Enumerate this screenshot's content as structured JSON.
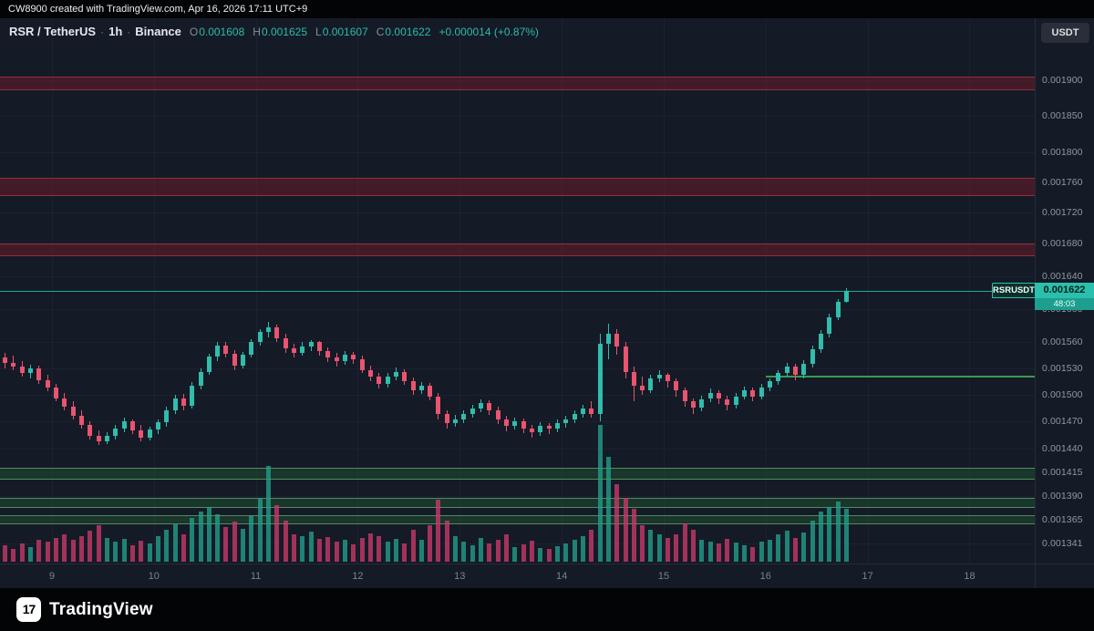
{
  "attribution": {
    "text": "CW8900 created with TradingView.com, Apr 16, 2026 17:11 UTC+9"
  },
  "header": {
    "symbol": "RSR / TetherUS",
    "separator": "·",
    "interval": "1h",
    "exchange": "Binance",
    "ohlc": [
      {
        "label": "O",
        "value": "0.001608"
      },
      {
        "label": "H",
        "value": "0.001625"
      },
      {
        "label": "L",
        "value": "0.001607"
      },
      {
        "label": "C",
        "value": "0.001622"
      }
    ],
    "change": "+0.000014 (+0.87%)"
  },
  "axis": {
    "currency_button": "USDT"
  },
  "price_label": {
    "symbol": "RSRUSDT",
    "price": "0.001622",
    "countdown": "48:03"
  },
  "footer": {
    "logo_text": "TradingView",
    "logo_glyph": "17"
  },
  "colors": {
    "background": "#141a26",
    "up": "#31bcab",
    "down": "#e9546f",
    "accent": "#2bbfae",
    "resistance_zone": "#8a1f2d",
    "support_zone": "#2a6e3c"
  },
  "chart_data": {
    "type": "candlestick",
    "symbol": "RSRUSDT",
    "exchange": "Binance",
    "interval": "1h",
    "quote_currency": "USDT",
    "scale_type": "log",
    "current_price": 0.001622,
    "current_candle": {
      "open": 0.001608,
      "high": 0.001625,
      "low": 0.001607,
      "close": 0.001622,
      "change": "+0.000014",
      "change_pct": "+0.87%"
    },
    "price_scale": 1e-06,
    "candles_unit": "[open,high,low,close] in units of 0.000001 USDT, 2h aggregates, Apr 8 12:00 - Apr 16 17:00",
    "axis_price_ticks": [
      0.0019,
      0.00185,
      0.0018,
      0.00176,
      0.00172,
      0.00168,
      0.00164,
      0.0016,
      0.00156,
      0.00153,
      0.0015,
      0.00147,
      0.00144,
      0.001415,
      0.00139,
      0.001365,
      0.001341
    ],
    "time_ticks": [
      {
        "label": "9",
        "i": 6
      },
      {
        "label": "10",
        "i": 18
      },
      {
        "label": "11",
        "i": 30
      },
      {
        "label": "12",
        "i": 42
      },
      {
        "label": "13",
        "i": 54
      },
      {
        "label": "14",
        "i": 66
      },
      {
        "label": "15",
        "i": 78
      },
      {
        "label": "16",
        "i": 90
      },
      {
        "label": "17",
        "i": 102
      },
      {
        "label": "18",
        "i": 114
      }
    ],
    "zones": [
      {
        "kind": "resistance",
        "from": 0.001886,
        "to": 0.001905
      },
      {
        "kind": "resistance",
        "from": 0.001742,
        "to": 0.001765
      },
      {
        "kind": "resistance",
        "from": 0.001664,
        "to": 0.001681
      },
      {
        "kind": "support",
        "from": 0.001407,
        "to": 0.00142
      },
      {
        "kind": "support",
        "from": 0.001377,
        "to": 0.001388
      },
      {
        "kind": "support",
        "from": 0.00136,
        "to": 0.00137
      }
    ],
    "ray": {
      "price": 0.00152,
      "start_index": 90
    },
    "candles": [
      [
        1542,
        1548,
        1530,
        1536
      ],
      [
        1536,
        1544,
        1528,
        1532
      ],
      [
        1532,
        1538,
        1520,
        1524
      ],
      [
        1524,
        1534,
        1518,
        1530
      ],
      [
        1530,
        1533,
        1512,
        1516
      ],
      [
        1516,
        1522,
        1504,
        1508
      ],
      [
        1508,
        1512,
        1492,
        1496
      ],
      [
        1496,
        1502,
        1482,
        1486
      ],
      [
        1486,
        1492,
        1472,
        1476
      ],
      [
        1476,
        1482,
        1462,
        1466
      ],
      [
        1466,
        1470,
        1450,
        1454
      ],
      [
        1454,
        1460,
        1444,
        1448
      ],
      [
        1448,
        1458,
        1445,
        1454
      ],
      [
        1454,
        1466,
        1450,
        1462
      ],
      [
        1462,
        1474,
        1458,
        1470
      ],
      [
        1470,
        1472,
        1456,
        1460
      ],
      [
        1460,
        1466,
        1448,
        1452
      ],
      [
        1452,
        1464,
        1449,
        1461
      ],
      [
        1461,
        1472,
        1456,
        1469
      ],
      [
        1469,
        1486,
        1464,
        1482
      ],
      [
        1482,
        1500,
        1478,
        1496
      ],
      [
        1496,
        1501,
        1482,
        1487
      ],
      [
        1487,
        1514,
        1484,
        1510
      ],
      [
        1510,
        1530,
        1506,
        1526
      ],
      [
        1526,
        1547,
        1522,
        1543
      ],
      [
        1543,
        1560,
        1538,
        1556
      ],
      [
        1556,
        1561,
        1542,
        1547
      ],
      [
        1547,
        1551,
        1528,
        1533
      ],
      [
        1533,
        1549,
        1530,
        1546
      ],
      [
        1546,
        1564,
        1542,
        1561
      ],
      [
        1561,
        1576,
        1556,
        1572
      ],
      [
        1572,
        1584,
        1566,
        1578
      ],
      [
        1578,
        1581,
        1560,
        1565
      ],
      [
        1565,
        1570,
        1548,
        1553
      ],
      [
        1553,
        1558,
        1542,
        1548
      ],
      [
        1548,
        1560,
        1545,
        1555
      ],
      [
        1555,
        1563,
        1550,
        1560
      ],
      [
        1560,
        1562,
        1545,
        1550
      ],
      [
        1550,
        1554,
        1537,
        1542
      ],
      [
        1542,
        1548,
        1532,
        1538
      ],
      [
        1538,
        1550,
        1534,
        1546
      ],
      [
        1546,
        1549,
        1535,
        1540
      ],
      [
        1540,
        1544,
        1524,
        1528
      ],
      [
        1528,
        1533,
        1515,
        1520
      ],
      [
        1520,
        1525,
        1507,
        1512
      ],
      [
        1512,
        1524,
        1508,
        1520
      ],
      [
        1520,
        1531,
        1516,
        1526
      ],
      [
        1526,
        1529,
        1511,
        1515
      ],
      [
        1515,
        1519,
        1500,
        1505
      ],
      [
        1505,
        1514,
        1501,
        1510
      ],
      [
        1510,
        1513,
        1493,
        1498
      ],
      [
        1498,
        1502,
        1472,
        1478
      ],
      [
        1478,
        1482,
        1462,
        1468
      ],
      [
        1468,
        1477,
        1464,
        1472
      ],
      [
        1472,
        1482,
        1468,
        1478
      ],
      [
        1478,
        1488,
        1474,
        1484
      ],
      [
        1484,
        1494,
        1480,
        1490
      ],
      [
        1490,
        1493,
        1477,
        1482
      ],
      [
        1482,
        1486,
        1467,
        1472
      ],
      [
        1472,
        1476,
        1459,
        1465
      ],
      [
        1465,
        1474,
        1461,
        1470
      ],
      [
        1470,
        1473,
        1457,
        1462
      ],
      [
        1462,
        1466,
        1452,
        1458
      ],
      [
        1458,
        1469,
        1454,
        1465
      ],
      [
        1465,
        1468,
        1456,
        1462
      ],
      [
        1462,
        1472,
        1458,
        1468
      ],
      [
        1468,
        1476,
        1463,
        1472
      ],
      [
        1472,
        1482,
        1468,
        1478
      ],
      [
        1478,
        1488,
        1474,
        1484
      ],
      [
        1484,
        1492,
        1474,
        1478
      ],
      [
        1478,
        1570,
        1470,
        1558
      ],
      [
        1558,
        1582,
        1540,
        1570
      ],
      [
        1570,
        1576,
        1546,
        1555
      ],
      [
        1555,
        1560,
        1518,
        1526
      ],
      [
        1526,
        1532,
        1492,
        1510
      ],
      [
        1510,
        1520,
        1500,
        1505
      ],
      [
        1505,
        1522,
        1502,
        1518
      ],
      [
        1518,
        1528,
        1514,
        1522
      ],
      [
        1522,
        1525,
        1508,
        1515
      ],
      [
        1515,
        1518,
        1498,
        1505
      ],
      [
        1505,
        1508,
        1486,
        1492
      ],
      [
        1492,
        1496,
        1478,
        1485
      ],
      [
        1485,
        1499,
        1481,
        1495
      ],
      [
        1495,
        1507,
        1491,
        1502
      ],
      [
        1502,
        1505,
        1489,
        1495
      ],
      [
        1495,
        1499,
        1482,
        1488
      ],
      [
        1488,
        1502,
        1484,
        1498
      ],
      [
        1498,
        1509,
        1494,
        1505
      ],
      [
        1505,
        1508,
        1492,
        1498
      ],
      [
        1498,
        1512,
        1495,
        1508
      ],
      [
        1508,
        1518,
        1504,
        1515
      ],
      [
        1515,
        1528,
        1511,
        1525
      ],
      [
        1525,
        1536,
        1520,
        1532
      ],
      [
        1532,
        1535,
        1516,
        1522
      ],
      [
        1522,
        1539,
        1518,
        1535
      ],
      [
        1535,
        1556,
        1531,
        1552
      ],
      [
        1552,
        1574,
        1548,
        1570
      ],
      [
        1570,
        1594,
        1566,
        1590
      ],
      [
        1590,
        1612,
        1586,
        1608
      ],
      [
        1608,
        1625,
        1607,
        1622
      ]
    ],
    "volume": [
      18,
      14,
      20,
      16,
      24,
      22,
      26,
      30,
      24,
      28,
      34,
      40,
      26,
      22,
      25,
      18,
      23,
      20,
      28,
      35,
      42,
      30,
      48,
      55,
      60,
      52,
      38,
      44,
      36,
      50,
      70,
      105,
      62,
      45,
      30,
      28,
      33,
      25,
      27,
      22,
      24,
      19,
      26,
      31,
      28,
      22,
      25,
      20,
      35,
      24,
      40,
      68,
      45,
      28,
      22,
      18,
      26,
      20,
      24,
      30,
      16,
      19,
      23,
      15,
      14,
      17,
      20,
      24,
      28,
      35,
      150,
      115,
      85,
      70,
      58,
      40,
      35,
      30,
      26,
      30,
      42,
      35,
      24,
      22,
      20,
      25,
      21,
      18,
      16,
      22,
      24,
      30,
      34,
      26,
      32,
      45,
      55,
      60,
      66,
      58
    ]
  }
}
